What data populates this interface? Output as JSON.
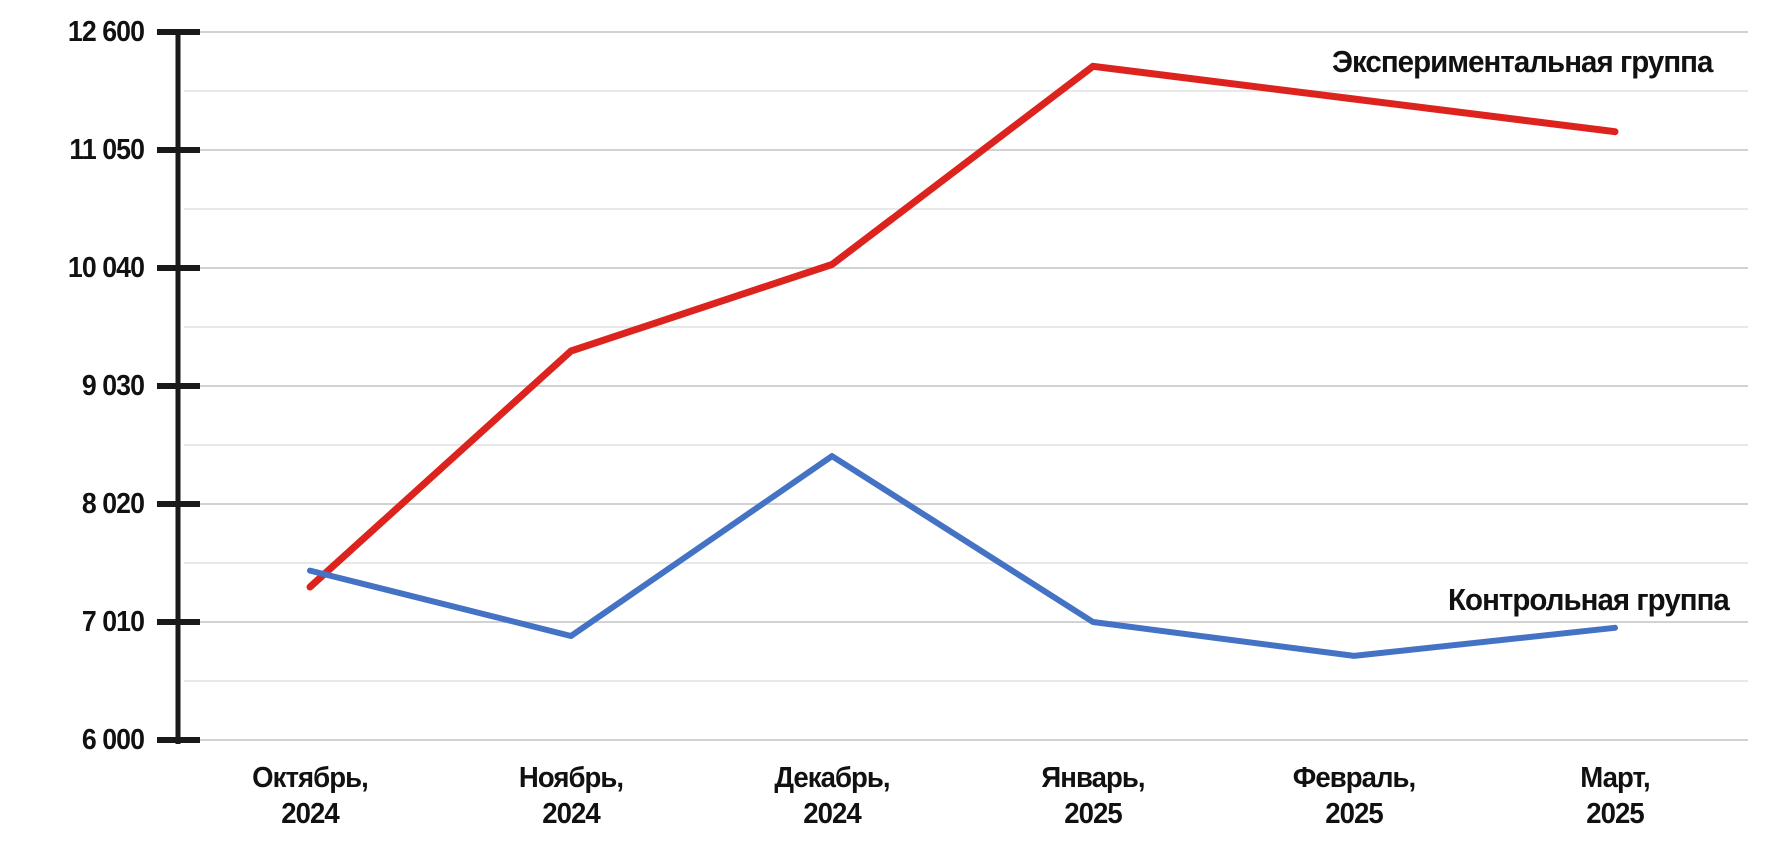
{
  "chart_data": {
    "type": "line",
    "categories": [
      "Октябрь,\n2024",
      "Ноябрь,\n2024",
      "Декабрь,\n2024",
      "Январь,\n2025",
      "Февраль,\n2025",
      "Март,\n2025"
    ],
    "series": [
      {
        "name": "Экспериментальная группа",
        "values": [
          7310,
          9330,
          10070,
          12150,
          11720,
          11290
        ],
        "color": "#dc231e",
        "stroke_width": 7
      },
      {
        "name": "Контрольная группа",
        "values": [
          7450,
          6890,
          8430,
          7010,
          6720,
          6960
        ],
        "color": "#4472c4",
        "stroke_width": 6
      }
    ],
    "y_axis": {
      "tick_values": [
        12600,
        11050,
        10040,
        9030,
        8020,
        7010,
        6000
      ],
      "tick_labels": [
        "12 600",
        "11 050",
        "10 040",
        "9 030",
        "8 020",
        "7 010",
        "6 000"
      ]
    },
    "x_axis": {
      "tick_labels": [
        "Октябрь,\n2024",
        "Ноябрь,\n2024",
        "Декабрь,\n2024",
        "Январь,\n2025",
        "Февраль,\n2025",
        "Март,\n2025"
      ]
    },
    "grid": "horizontal major and minor lines",
    "legend_position": "inline annotations near line ends",
    "colors": {
      "experimental": "#dc231e",
      "control": "#4472c4",
      "axis": "#1a1a1a",
      "major_gridline": "#d2d2d2",
      "minor_gridline": "#e8e8e8",
      "text": "#111111",
      "background": "#ffffff"
    }
  }
}
